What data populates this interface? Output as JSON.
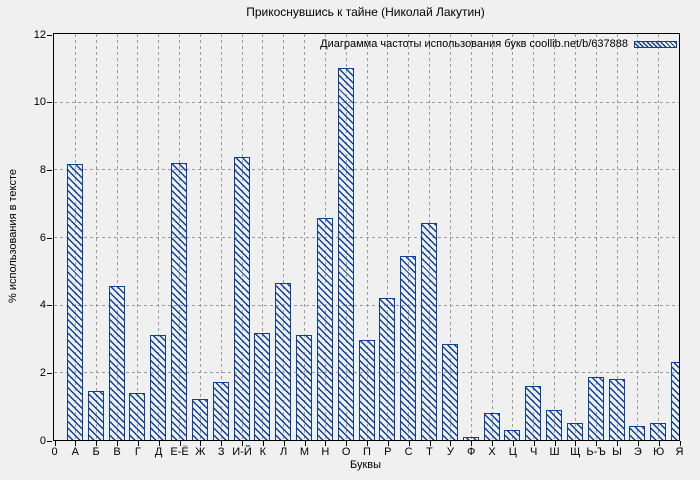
{
  "chart_data": {
    "type": "bar",
    "title": "Прикоснувшись к тайне (Николай Лакутин)",
    "legend_label": "Диаграмма частоты использования букв coollib.net/b/637888",
    "legend_position": "top-right",
    "xlabel": "Буквы",
    "ylabel": "% использования в тексте",
    "categories": [
      "0",
      "А",
      "Б",
      "В",
      "Г",
      "Д",
      "Е-Ё",
      "Ж",
      "З",
      "И-Й",
      "К",
      "Л",
      "М",
      "Н",
      "О",
      "П",
      "Р",
      "С",
      "Т",
      "У",
      "Ф",
      "Х",
      "Ц",
      "Ч",
      "Ш",
      "Щ",
      "Ь-Ъ",
      "Ы",
      "Э",
      "Ю",
      "Я"
    ],
    "values": [
      0,
      8.15,
      1.45,
      4.55,
      1.4,
      3.1,
      8.2,
      1.2,
      1.7,
      8.35,
      3.15,
      4.65,
      3.1,
      6.55,
      11.0,
      2.95,
      4.2,
      5.45,
      6.4,
      2.85,
      0.1,
      0.8,
      0.3,
      1.6,
      0.9,
      0.5,
      1.85,
      1.8,
      0.4,
      0.5,
      2.3
    ],
    "ylim": [
      0,
      12
    ],
    "yticks": [
      0,
      2,
      4,
      6,
      8,
      10,
      12
    ],
    "grid": true,
    "bar_color": "#0a41a0",
    "background_color": "#f0f0f0",
    "grid_color": "#9b9b9b",
    "frame_color": "#000000"
  }
}
